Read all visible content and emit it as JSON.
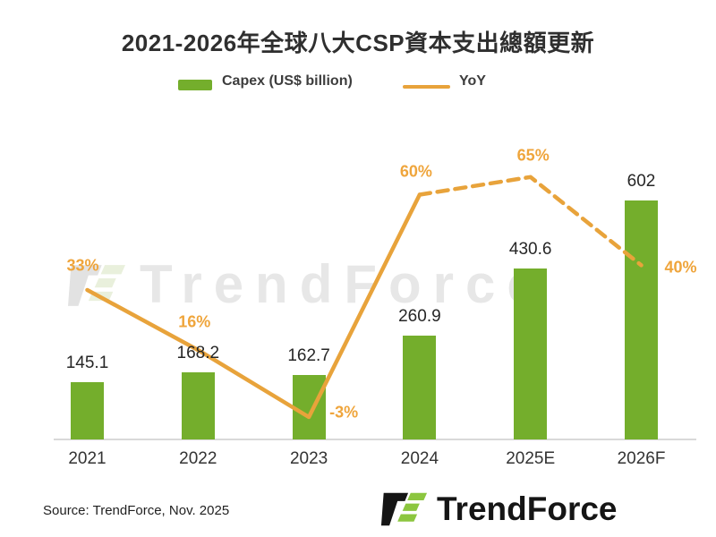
{
  "title": "2021-2026年全球八大CSP資本支出總額更新",
  "legend": {
    "capex_label": "Capex (US$ billion)",
    "yoy_label": "YoY"
  },
  "chart_data": {
    "type": "bar+line",
    "categories": [
      "2021",
      "2022",
      "2023",
      "2024",
      "2025E",
      "2026F"
    ],
    "series": [
      {
        "name": "Capex (US$ billion)",
        "type": "bar",
        "values": [
          145.1,
          168.2,
          162.7,
          260.9,
          430.6,
          602
        ],
        "value_labels": [
          "145.1",
          "168.2",
          "162.7",
          "260.9",
          "430.6",
          "602"
        ]
      },
      {
        "name": "YoY",
        "type": "line",
        "values_percent": [
          33,
          16,
          -3,
          60,
          65,
          40
        ],
        "value_labels": [
          "33%",
          "16%",
          "-3%",
          "60%",
          "65%",
          "40%"
        ],
        "solid_segment_categories": [
          "2021",
          "2022",
          "2023",
          "2024"
        ],
        "dashed_segment_categories": [
          "2024",
          "2025E",
          "2026F"
        ]
      }
    ],
    "title": "2021-2026年全球八大CSP資本支出總額更新",
    "xlabel": "",
    "ylabel": "",
    "grid": false,
    "legend_position": "top-center",
    "watermark": "TrendForce"
  },
  "colors": {
    "bar_green": "#74ae2c",
    "line_orange": "#e8a33b",
    "pct_label_orange": "#efa53c",
    "logo_green": "#8cc63f",
    "logo_black": "#151515",
    "watermark_gray": "#e7e7e7"
  },
  "footer": {
    "source": "Source: TrendForce, Nov. 2025",
    "logo_text": "TrendForce"
  }
}
